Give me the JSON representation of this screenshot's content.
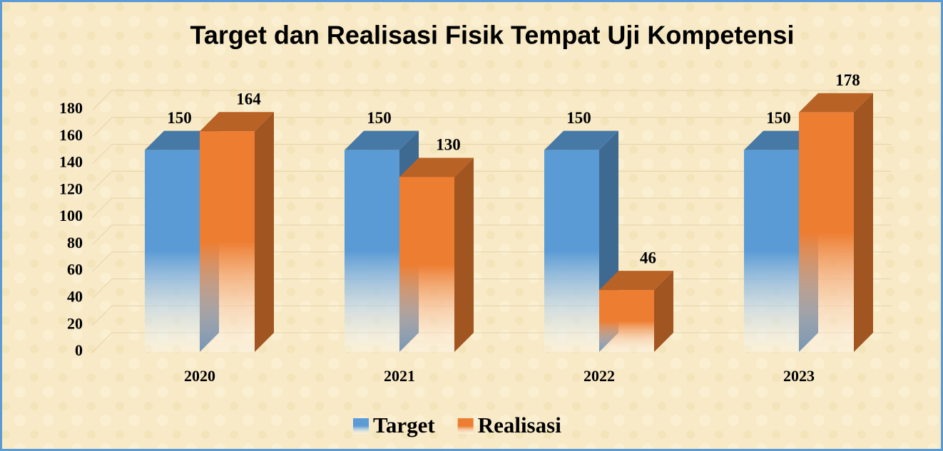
{
  "chart_data": {
    "type": "bar3d",
    "title": "Target dan Realisasi Fisik Tempat Uji Kompetensi",
    "categories": [
      "2020",
      "2021",
      "2022",
      "2023"
    ],
    "series": [
      {
        "name": "Target",
        "color": "#5b9bd5",
        "values": [
          150,
          150,
          150,
          150
        ]
      },
      {
        "name": "Realisasi",
        "color": "#ed7d31",
        "values": [
          164,
          130,
          46,
          178
        ]
      }
    ],
    "ylim": [
      0,
      180
    ],
    "yticks": [
      0,
      20,
      40,
      60,
      80,
      100,
      120,
      140,
      160,
      180
    ],
    "grid": true,
    "legend": "bottom"
  }
}
